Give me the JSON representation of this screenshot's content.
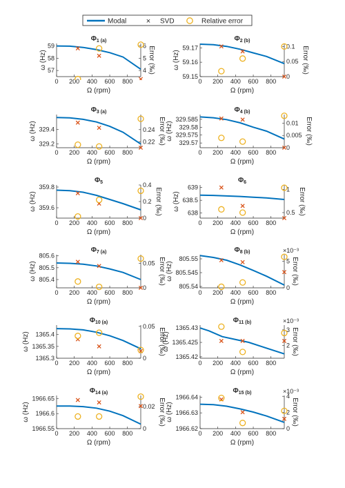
{
  "legend": {
    "modal": "Modal",
    "svd": "SVD",
    "relerr": "Relative error"
  },
  "colors": {
    "modal": "#0072BD",
    "svd": "#D95319",
    "relerr": "#EDB120",
    "axis": "#262626"
  },
  "chart_data": [
    {
      "type": "line",
      "title_main": "Φ",
      "title_sub": "1 (a)",
      "xlabel": "Ω (rpm)",
      "ylabel_left": "ω (Hz)",
      "ylabel_right": "Error (‰)",
      "xlim": [
        0,
        950
      ],
      "ylim_left": [
        56.5,
        59.2
      ],
      "yticks_left": [
        "57",
        "58",
        "59"
      ],
      "ylim_right": [
        3.5,
        6.2
      ],
      "yticks_right": [
        "4",
        "5",
        "6"
      ],
      "right_exponent": "",
      "xticks": [
        "0",
        "200",
        "400",
        "600",
        "800"
      ],
      "modal": {
        "x": [
          0,
          150,
          300,
          450,
          600,
          750,
          950
        ],
        "y": [
          59.0,
          58.98,
          58.88,
          58.7,
          58.45,
          58.1,
          57.1
        ]
      },
      "svd": {
        "x": [
          240,
          480,
          950
        ],
        "y": [
          58.8,
          58.2,
          56.3
        ]
      },
      "relerr": {
        "x": [
          240,
          480,
          950
        ],
        "y": [
          3.3,
          5.8,
          6.1
        ]
      }
    },
    {
      "type": "line",
      "title_main": "Φ",
      "title_sub": "2 (b)",
      "xlabel": "Ω (rpm)",
      "ylabel_left": "ω (Hz)",
      "ylabel_right": "Error (‰)",
      "xlim": [
        0,
        950
      ],
      "ylim_left": [
        59.15,
        59.173
      ],
      "yticks_left": [
        "59.15",
        "59.16",
        "59.17"
      ],
      "ylim_right": [
        0,
        0.11
      ],
      "yticks_right": [
        "0",
        "0.05",
        "0.1"
      ],
      "right_exponent": "",
      "xticks": [
        "0",
        "200",
        "400",
        "600",
        "800"
      ],
      "modal": {
        "x": [
          0,
          150,
          300,
          450,
          600,
          750,
          950
        ],
        "y": [
          59.1725,
          59.1722,
          59.171,
          59.169,
          59.1665,
          59.164,
          59.159
        ]
      },
      "svd": {
        "x": [
          240,
          480,
          950
        ],
        "y": [
          59.171,
          59.1675,
          59.15
        ]
      },
      "relerr": {
        "x": [
          240,
          480,
          950
        ],
        "y": [
          0.018,
          0.06,
          0.1
        ]
      }
    },
    {
      "type": "line",
      "title_main": "Φ",
      "title_sub": "3 (a)",
      "xlabel": "Ω (rpm)",
      "ylabel_left": "ω (Hz)",
      "ylabel_right": "Error (‰)",
      "xlim": [
        0,
        950
      ],
      "ylim_left": [
        329.15,
        329.6
      ],
      "yticks_left": [
        "329.2",
        "329.4"
      ],
      "ylim_right": [
        0.21,
        0.265
      ],
      "yticks_right": [
        "0.22",
        "0.24"
      ],
      "right_exponent": "",
      "xticks": [
        "0",
        "200",
        "400",
        "600",
        "800"
      ],
      "modal": {
        "x": [
          0,
          150,
          300,
          450,
          600,
          750,
          950
        ],
        "y": [
          329.56,
          329.555,
          329.535,
          329.5,
          329.44,
          329.36,
          329.2
        ]
      },
      "svd": {
        "x": [
          240,
          480,
          950
        ],
        "y": [
          329.49,
          329.42,
          329.15
        ]
      },
      "relerr": {
        "x": [
          240,
          480,
          950
        ],
        "y": [
          0.215,
          0.212,
          0.258
        ]
      }
    },
    {
      "type": "line",
      "title_main": "Φ",
      "title_sub": "4 (b)",
      "xlabel": "Ω (rpm)",
      "ylabel_left": "ω (Hz)",
      "ylabel_right": "Error (‰)",
      "xlim": [
        0,
        950
      ],
      "ylim_left": [
        329.567,
        329.588
      ],
      "yticks_left": [
        "329.57",
        "329.575",
        "329.58",
        "329.585"
      ],
      "ylim_right": [
        0,
        0.0135
      ],
      "yticks_right": [
        "0",
        "0.005",
        "0.01"
      ],
      "right_exponent": "",
      "xticks": [
        "0",
        "200",
        "400",
        "600",
        "800"
      ],
      "modal": {
        "x": [
          0,
          150,
          300,
          450,
          600,
          750,
          950
        ],
        "y": [
          329.5865,
          329.586,
          329.5848,
          329.5828,
          329.58,
          329.5775,
          329.5725
        ]
      },
      "svd": {
        "x": [
          240,
          480,
          950
        ],
        "y": [
          329.5855,
          329.5848,
          329.567
        ]
      },
      "relerr": {
        "x": [
          240,
          480,
          950
        ],
        "y": [
          0.004,
          0.0025,
          0.013
        ]
      }
    },
    {
      "type": "line",
      "title_main": "Φ",
      "title_sub": "5",
      "xlabel": "Ω (rpm)",
      "ylabel_left": "ω (Hz)",
      "ylabel_right": "Error (‰)",
      "xlim": [
        0,
        950
      ],
      "ylim_left": [
        359.5,
        359.82
      ],
      "yticks_left": [
        "359.6",
        "359.8"
      ],
      "ylim_right": [
        0,
        0.4
      ],
      "yticks_right": [
        "0",
        "0.2",
        "0.4"
      ],
      "right_exponent": "",
      "xticks": [
        "0",
        "200",
        "400",
        "600",
        "800"
      ],
      "modal": {
        "x": [
          0,
          150,
          300,
          450,
          600,
          750,
          950
        ],
        "y": [
          359.77,
          359.765,
          359.75,
          359.72,
          359.68,
          359.64,
          359.58
        ]
      },
      "svd": {
        "x": [
          240,
          480,
          950
        ],
        "y": [
          359.74,
          359.64,
          359.5
        ]
      },
      "relerr": {
        "x": [
          240,
          480,
          950
        ],
        "y": [
          0.02,
          0.22,
          0.33
        ]
      }
    },
    {
      "type": "line",
      "title_main": "Φ",
      "title_sub": "6",
      "xlabel": "Ω (rpm)",
      "ylabel_left": "ω (Hz)",
      "ylabel_right": "Error (‰)",
      "xlim": [
        0,
        950
      ],
      "ylim_left": [
        637.8,
        639.1
      ],
      "yticks_left": [
        "638",
        "638.5",
        "639"
      ],
      "ylim_right": [
        0.38,
        1.1
      ],
      "yticks_right": [
        "0.5",
        "1"
      ],
      "right_exponent": "",
      "xticks": [
        "0",
        "200",
        "400",
        "600",
        "800"
      ],
      "modal": {
        "x": [
          0,
          150,
          300,
          450,
          600,
          750,
          950
        ],
        "y": [
          638.7,
          638.69,
          638.67,
          638.65,
          638.62,
          638.59,
          638.53
        ]
      },
      "svd": {
        "x": [
          240,
          480,
          950
        ],
        "y": [
          639.0,
          638.28,
          637.8
        ]
      },
      "relerr": {
        "x": [
          240,
          480,
          950
        ],
        "y": [
          0.57,
          0.5,
          1.04
        ]
      }
    },
    {
      "type": "line",
      "title_main": "Φ",
      "title_sub": "7 (a)",
      "xlabel": "Ω (rpm)",
      "ylabel_left": "ω (Hz)",
      "ylabel_right": "Error (‰)",
      "xlim": [
        0,
        950
      ],
      "ylim_left": [
        805.33,
        805.61
      ],
      "yticks_left": [
        "805.4",
        "805.5",
        "805.6"
      ],
      "ylim_right": [
        0,
        0.068
      ],
      "yticks_right": [
        "0",
        "0.05"
      ],
      "right_exponent": "",
      "xticks": [
        "0",
        "200",
        "400",
        "600",
        "800"
      ],
      "modal": {
        "x": [
          0,
          150,
          300,
          450,
          600,
          750,
          950
        ],
        "y": [
          805.54,
          805.537,
          805.53,
          805.515,
          805.49,
          805.46,
          805.4
        ]
      },
      "svd": {
        "x": [
          240,
          480,
          950
        ],
        "y": [
          805.55,
          805.515,
          805.33
        ]
      },
      "relerr": {
        "x": [
          240,
          480,
          950
        ],
        "y": [
          0.013,
          0.002,
          0.06
        ]
      }
    },
    {
      "type": "line",
      "title_main": "Φ",
      "title_sub": "8 (b)",
      "xlabel": "Ω (rpm)",
      "ylabel_left": "ω (Hz)",
      "ylabel_right": "Error (‰)",
      "xlim": [
        0,
        950
      ],
      "ylim_left": [
        805.5395,
        805.5515
      ],
      "yticks_left": [
        "805.54",
        "805.545",
        "805.55"
      ],
      "ylim_right": [
        0,
        6.2
      ],
      "yticks_right": [
        "0",
        "5"
      ],
      "right_exponent": "×10⁻³",
      "xticks": [
        "0",
        "200",
        "400",
        "600",
        "800"
      ],
      "modal": {
        "x": [
          0,
          150,
          300,
          450,
          600,
          750,
          950
        ],
        "y": [
          805.5512,
          805.5505,
          805.5495,
          805.5478,
          805.5458,
          805.5437,
          805.5405
        ]
      },
      "svd": {
        "x": [
          240,
          480,
          950
        ],
        "y": [
          805.5495,
          805.5488,
          805.5452
        ]
      },
      "relerr": {
        "x": [
          240,
          480,
          950
        ],
        "y": [
          0.2,
          1.0,
          5.8
        ]
      }
    },
    {
      "type": "line",
      "title_main": "Φ",
      "title_sub": "10 (a)",
      "xlabel": "Ω (rpm)",
      "ylabel_left": "ω (Hz)",
      "ylabel_right": "Error (‰)",
      "xlim": [
        0,
        950
      ],
      "ylim_left": [
        1365.3,
        1365.44
      ],
      "yticks_left": [
        "1365.3",
        "1365.35",
        "1365.4"
      ],
      "ylim_right": [
        0,
        0.052
      ],
      "yticks_right": [
        "0",
        "0.05"
      ],
      "right_exponent": "",
      "xticks": [
        "0",
        "200",
        "400",
        "600",
        "800"
      ],
      "modal": {
        "x": [
          0,
          150,
          300,
          450,
          600,
          750,
          950
        ],
        "y": [
          1365.425,
          1365.424,
          1365.42,
          1365.41,
          1365.395,
          1365.375,
          1365.34
        ]
      },
      "svd": {
        "x": [
          240,
          480,
          950
        ],
        "y": [
          1365.38,
          1365.35,
          1365.33
        ]
      },
      "relerr": {
        "x": [
          240,
          480,
          950
        ],
        "y": [
          0.035,
          0.04,
          0.013
        ]
      }
    },
    {
      "type": "line",
      "title_main": "Φ",
      "title_sub": "11 (b)",
      "xlabel": "Ω (rpm)",
      "ylabel_left": "ω (Hz)",
      "ylabel_right": "Error (‰)",
      "xlim": [
        0,
        950
      ],
      "ylim_left": [
        1365.4195,
        1365.431
      ],
      "yticks_left": [
        "1365.42",
        "1365.425",
        "1365.43"
      ],
      "ylim_right": [
        1.2,
        3.3
      ],
      "yticks_right": [
        "2",
        "3"
      ],
      "right_exponent": "×10⁻³",
      "xticks": [
        "0",
        "200",
        "400",
        "600",
        "800"
      ],
      "modal": {
        "x": [
          0,
          100,
          250,
          400,
          550,
          700,
          950
        ],
        "y": [
          1365.43,
          1365.429,
          1365.427,
          1365.426,
          1365.425,
          1365.4235,
          1365.421
        ]
      },
      "svd": {
        "x": [
          240,
          480,
          950
        ],
        "y": [
          1365.4255,
          1365.4255,
          1365.4255
        ]
      },
      "relerr": {
        "x": [
          240,
          480,
          950
        ],
        "y": [
          3.2,
          1.6,
          2.8
        ]
      }
    },
    {
      "type": "line",
      "title_main": "Φ",
      "title_sub": "14 (a)",
      "xlabel": "Ω (rpm)",
      "ylabel_left": "ω (Hz)",
      "ylabel_right": "Error (‰)",
      "xlim": [
        0,
        950
      ],
      "ylim_left": [
        1966.55,
        1966.66
      ],
      "yticks_left": [
        "1966.55",
        "1966.6",
        "1966.65"
      ],
      "ylim_right": [
        0,
        0.03
      ],
      "yticks_right": [
        "0",
        "0.02"
      ],
      "right_exponent": "",
      "xticks": [
        "0",
        "200",
        "400",
        "600",
        "800"
      ],
      "modal": {
        "x": [
          0,
          150,
          300,
          450,
          600,
          750,
          950
        ],
        "y": [
          1966.625,
          1966.625,
          1966.623,
          1966.618,
          1966.608,
          1966.593,
          1966.565
        ]
      },
      "svd": {
        "x": [
          240,
          480,
          950
        ],
        "y": [
          1966.645,
          1966.637,
          1966.625
        ]
      },
      "relerr": {
        "x": [
          240,
          480,
          950
        ],
        "y": [
          0.011,
          0.011,
          0.029
        ]
      }
    },
    {
      "type": "line",
      "title_main": "Φ",
      "title_sub": "15 (b)",
      "xlabel": "Ω (rpm)",
      "ylabel_left": "ω (Hz)",
      "ylabel_right": "Error (‰)",
      "xlim": [
        0,
        950
      ],
      "ylim_left": [
        1966.62,
        1966.641
      ],
      "yticks_left": [
        "1966.62",
        "1966.63",
        "1966.64"
      ],
      "ylim_right": [
        0,
        4.1
      ],
      "yticks_right": [
        "0",
        "2",
        "4"
      ],
      "right_exponent": "×10⁻³",
      "xticks": [
        "0",
        "200",
        "400",
        "600",
        "800"
      ],
      "modal": {
        "x": [
          0,
          150,
          300,
          450,
          600,
          750,
          950
        ],
        "y": [
          1966.6355,
          1966.6352,
          1966.6342,
          1966.6325,
          1966.6305,
          1966.628,
          1966.624
        ]
      },
      "svd": {
        "x": [
          240,
          480,
          950
        ],
        "y": [
          1966.6385,
          1966.6304,
          1966.6262
        ]
      },
      "relerr": {
        "x": [
          240,
          480,
          950
        ],
        "y": [
          3.8,
          0.7,
          2.2
        ]
      }
    }
  ]
}
